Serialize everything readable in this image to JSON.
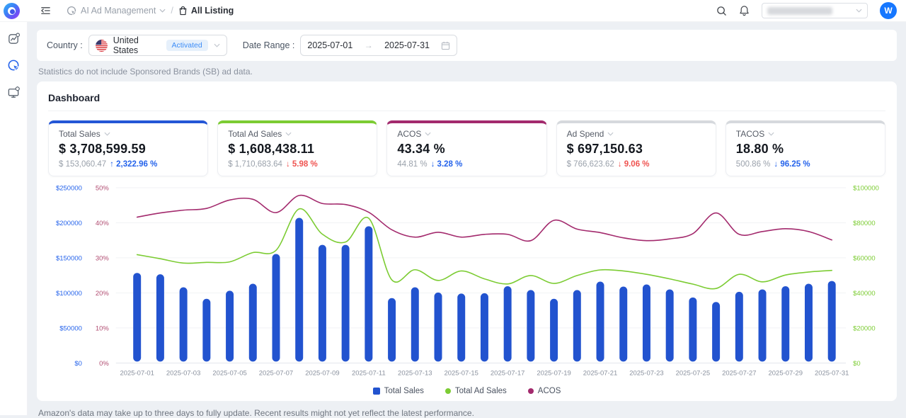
{
  "theme": {
    "primary": "#2563eb",
    "avatar_bg": "#1677ff",
    "badge_bg": "#e6f0fb",
    "badge_text": "#3e8df7"
  },
  "header": {
    "breadcrumb_app": "AI Ad Management",
    "breadcrumb_sep": "/",
    "breadcrumb_page": "All Listing",
    "avatar_text": "W"
  },
  "filter": {
    "country_label": "Country :",
    "country_value": "United States",
    "country_badge": "Activated",
    "date_range_label": "Date Range :",
    "date_start": "2025-07-01",
    "range_arrow": "→",
    "date_end": "2025-07-31"
  },
  "notice": "Statistics do not include Sponsored Brands (SB) ad data.",
  "dashboard": {
    "title": "Dashboard"
  },
  "stat_cards": [
    {
      "label": "Total Sales",
      "value": "$ 3,708,599.59",
      "prev": "$ 153,060.47",
      "arrow": "↑",
      "delta": "2,322.96 %",
      "delta_color": "#2563eb",
      "accent": "#2456d6"
    },
    {
      "label": "Total Ad Sales",
      "value": "$ 1,608,438.11",
      "prev": "$ 1,710,683.64",
      "arrow": "↓",
      "delta": "5.98 %",
      "delta_color": "#ef5350",
      "accent": "#7ccc33"
    },
    {
      "label": "ACOS",
      "value": "43.34 %",
      "prev": "44.81 %",
      "arrow": "↓",
      "delta": "3.28 %",
      "delta_color": "#2563eb",
      "accent": "#a32a6d"
    },
    {
      "label": "Ad Spend",
      "value": "$ 697,150.63",
      "prev": "$ 766,623.62",
      "arrow": "↓",
      "delta": "9.06 %",
      "delta_color": "#ef5350",
      "accent": "#d6d9dd"
    },
    {
      "label": "TACOS",
      "value": "18.80 %",
      "prev": "500.86 %",
      "arrow": "↓",
      "delta": "96.25 %",
      "delta_color": "#2563eb",
      "accent": "#d6d9dd"
    }
  ],
  "chart_data": {
    "type": "combo",
    "x": [
      "2025-07-01",
      "2025-07-02",
      "2025-07-03",
      "2025-07-04",
      "2025-07-05",
      "2025-07-06",
      "2025-07-07",
      "2025-07-08",
      "2025-07-09",
      "2025-07-10",
      "2025-07-11",
      "2025-07-12",
      "2025-07-13",
      "2025-07-14",
      "2025-07-15",
      "2025-07-16",
      "2025-07-17",
      "2025-07-18",
      "2025-07-19",
      "2025-07-20",
      "2025-07-21",
      "2025-07-22",
      "2025-07-23",
      "2025-07-24",
      "2025-07-25",
      "2025-07-26",
      "2025-07-27",
      "2025-07-28",
      "2025-07-29",
      "2025-07-30",
      "2025-07-31"
    ],
    "x_tick_labels": [
      "2025-07-01",
      "2025-07-03",
      "2025-07-05",
      "2025-07-07",
      "2025-07-09",
      "2025-07-11",
      "2025-07-13",
      "2025-07-15",
      "2025-07-17",
      "2025-07-19",
      "2025-07-21",
      "2025-07-23",
      "2025-07-25",
      "2025-07-27",
      "2025-07-29",
      "2025-07-31"
    ],
    "series": [
      {
        "name": "Total Sales",
        "type": "bar",
        "axis": "left_dollar",
        "color": "#2253cf",
        "values": [
          128500,
          126500,
          108000,
          91500,
          103000,
          113000,
          155500,
          207000,
          168500,
          168500,
          195000,
          92500,
          108000,
          100500,
          99000,
          99500,
          109500,
          104000,
          91500,
          104000,
          116000,
          109000,
          112000,
          105000,
          93500,
          87000,
          101500,
          105000,
          109500,
          113000,
          117000
        ]
      },
      {
        "name": "Total Ad Sales",
        "type": "line",
        "axis": "right_dollar",
        "color": "#7ccc33",
        "values": [
          61800,
          59500,
          57000,
          57400,
          57700,
          63000,
          64300,
          87900,
          73500,
          69000,
          82600,
          47400,
          53200,
          47100,
          52500,
          48000,
          45100,
          49900,
          45400,
          49900,
          53100,
          52500,
          50600,
          48000,
          45000,
          42500,
          50600,
          46300,
          50200,
          51900,
          52800
        ]
      },
      {
        "name": "ACOS",
        "type": "line",
        "axis": "left_percent",
        "color": "#a32a6d",
        "values": [
          41.6,
          42.8,
          43.6,
          44.1,
          46.5,
          46.7,
          42.9,
          47.8,
          45.5,
          45.2,
          43.0,
          38.0,
          35.9,
          37.3,
          35.9,
          36.7,
          36.7,
          34.9,
          40.7,
          38.2,
          37.2,
          35.7,
          34.9,
          35.4,
          36.9,
          42.8,
          36.7,
          37.5,
          38.3,
          37.5,
          35.1
        ]
      }
    ],
    "axes": {
      "left_dollar": {
        "max": 250000,
        "ticks": [
          "$0",
          "$50000",
          "$100000",
          "$150000",
          "$200000",
          "$250000"
        ],
        "color": "#2563eb"
      },
      "left_percent": {
        "max": 50,
        "ticks": [
          "0%",
          "10%",
          "20%",
          "30%",
          "40%",
          "50%"
        ],
        "color": "#b14d72"
      },
      "right_dollar": {
        "max": 100000,
        "ticks": [
          "$0",
          "$20000",
          "$40000",
          "$60000",
          "$80000",
          "$100000"
        ],
        "color": "#7ccc33"
      }
    },
    "legend": [
      {
        "label": "Total Sales",
        "color": "#2253cf",
        "shape": "square"
      },
      {
        "label": "Total Ad Sales",
        "color": "#7ccc33",
        "shape": "circle"
      },
      {
        "label": "ACOS",
        "color": "#a32a6d",
        "shape": "circle"
      }
    ],
    "grid": true,
    "legend_position": "bottom"
  },
  "footer_note": "Amazon's data may take up to three days to fully update. Recent results might not yet reflect the latest performance."
}
